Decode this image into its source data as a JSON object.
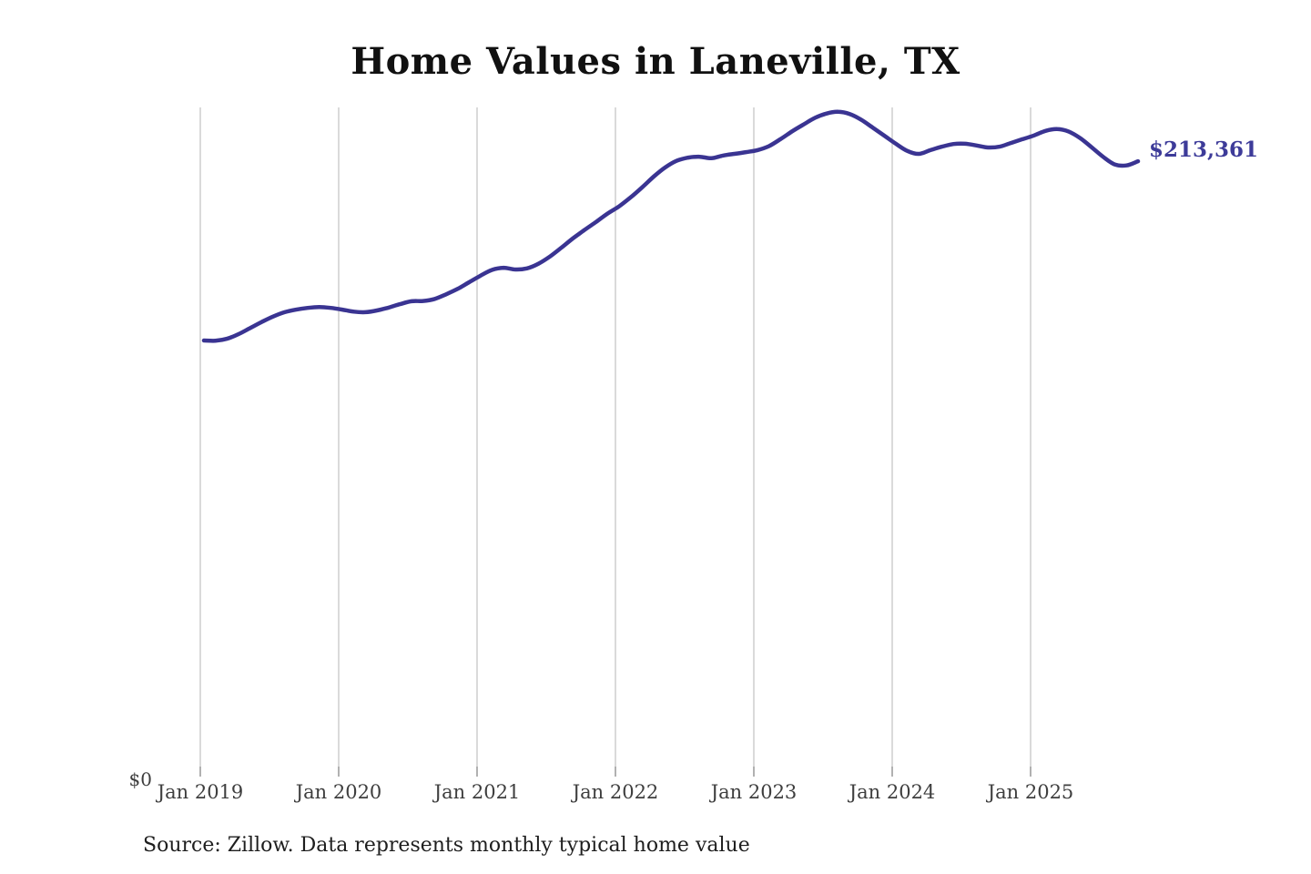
{
  "source_note": "Source: Zillow. Data represents monthly typical home value",
  "chart_data": {
    "type": "line",
    "title": "Home Values in Laneville, TX",
    "subtitle": "",
    "series": [
      {
        "name": "Monthly typical home value",
        "x_start": "Jan 2019",
        "x_end": "Oct 2025",
        "x_interval": "monthly",
        "values": [
          151200,
          151100,
          151800,
          153400,
          155500,
          157600,
          159500,
          161000,
          161900,
          162500,
          162800,
          162500,
          161900,
          161200,
          161000,
          161600,
          162600,
          163800,
          164800,
          164900,
          165600,
          167200,
          169100,
          171400,
          173700,
          175700,
          176400,
          175800,
          176200,
          177800,
          180300,
          183400,
          186600,
          189500,
          192300,
          195200,
          197700,
          200800,
          204300,
          208000,
          211200,
          213500,
          214600,
          214900,
          214400,
          215300,
          215900,
          216500,
          217200,
          218600,
          221000,
          223700,
          226100,
          228400,
          229900,
          230500,
          229700,
          227700,
          225000,
          222200,
          219400,
          216900,
          215900,
          217200,
          218400,
          219300,
          219400,
          218800,
          218100,
          218400,
          219700,
          221000,
          222300,
          223900,
          224500,
          223600,
          221300,
          218100,
          214800,
          212200,
          211900,
          213361
        ]
      }
    ],
    "x_tick_labels": [
      "Jan 2019",
      "Jan 2020",
      "Jan 2021",
      "Jan 2022",
      "Jan 2023",
      "Jan 2024",
      "Jan 2025"
    ],
    "y_tick_labels": [
      "$0"
    ],
    "xlabel": "",
    "ylabel": "",
    "ylim": [
      0,
      232000
    ],
    "grid": "vertical yearly gridlines",
    "legend": false,
    "end_label": "$213,361",
    "final_value": 213361,
    "colors": {
      "line": "#3a3492",
      "end_label": "#3d3b99",
      "gridline": "#c6c6c6",
      "tick": "#909090",
      "axis_text": "#3e3e3e",
      "title_text": "#111111",
      "source_text": "#1e1e1e",
      "background": "#ffffff"
    }
  }
}
